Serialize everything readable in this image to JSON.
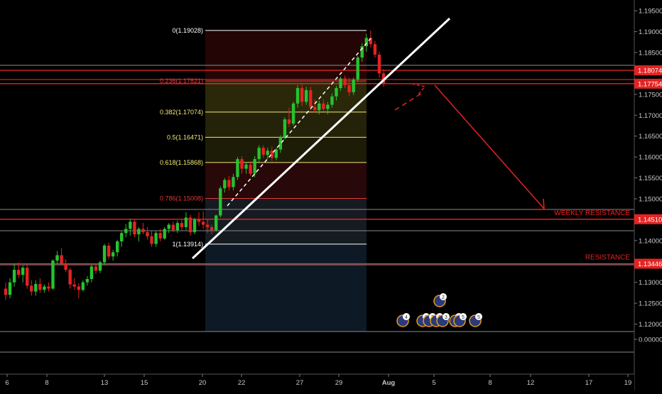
{
  "theme": {
    "background": "#000000",
    "up_color": "#26c22f",
    "down_color": "#e52222",
    "axis_text": "#c8c8c8",
    "fib_label_red": "#e03a3a",
    "fib_label_yellow": "#f2ea77",
    "resistance_red": "#ff2a2a"
  },
  "chart_data": {
    "type": "candlestick",
    "title": "",
    "y_axis": {
      "range": [
        -0.0063,
        1.1992
      ],
      "ticks": [
        "1.19500",
        "1.19000",
        "1.18500",
        "1.18000",
        "1.17500",
        "1.17000",
        "1.16500",
        "1.16000",
        "1.15500",
        "1.15000",
        "1.14500",
        "1.14000",
        "1.13500",
        "1.13000",
        "1.12500",
        "1.12000",
        "0.00000"
      ],
      "price_labels": [
        {
          "text": "1.18074",
          "value": 1.18074,
          "color": "#e52222"
        },
        {
          "text": "1.17754",
          "value": 1.17754,
          "color": "#e52222"
        },
        {
          "text": "1.14510",
          "value": 1.1451,
          "color": "#e52222"
        },
        {
          "text": "1.13446",
          "value": 1.13446,
          "color": "#e52222"
        }
      ]
    },
    "x_axis": {
      "ticks": [
        "6",
        "8",
        "13",
        "15",
        "20",
        "22",
        "27",
        "29",
        "Aug",
        "5",
        "8",
        "12",
        "17",
        "19"
      ]
    },
    "fibonacci": [
      {
        "label": "0(1.19028)",
        "level": "0",
        "value": 1.19028,
        "color": "#ffffff"
      },
      {
        "label": "0.236(1.17821)",
        "level": "0.236",
        "value": 1.17821,
        "color": "#e03a3a"
      },
      {
        "label": "0.382(1.17074)",
        "level": "0.382",
        "value": 1.17074,
        "color": "#f2ea77"
      },
      {
        "label": "0.5(1.16471)",
        "level": "0.5",
        "value": 1.16471,
        "color": "#f2ea77"
      },
      {
        "label": "0.618(1.15868)",
        "level": "0.618",
        "value": 1.15868,
        "color": "#f2ea77"
      },
      {
        "label": "0.786(1.15008)",
        "level": "0.786",
        "value": 1.15008,
        "color": "#e03a3a"
      },
      {
        "label": "1(1.13914)",
        "level": "1",
        "value": 1.13914,
        "color": "#ffffff"
      }
    ],
    "annotations": [
      {
        "text": "WEEKLY RESISTANCE",
        "value": 1.1451
      },
      {
        "text": "RESISTANCE",
        "value": 1.13446
      }
    ],
    "event_badges": [
      "4",
      "2",
      "2",
      "3",
      "3",
      "2",
      "3",
      "5",
      "5"
    ],
    "candles": [
      {
        "o": 1.1285,
        "h": 1.13,
        "l": 1.1258,
        "c": 1.127
      },
      {
        "o": 1.127,
        "h": 1.131,
        "l": 1.1262,
        "c": 1.13
      },
      {
        "o": 1.13,
        "h": 1.1345,
        "l": 1.129,
        "c": 1.133
      },
      {
        "o": 1.133,
        "h": 1.1348,
        "l": 1.131,
        "c": 1.1318
      },
      {
        "o": 1.1318,
        "h": 1.134,
        "l": 1.13,
        "c": 1.1335
      },
      {
        "o": 1.1335,
        "h": 1.1342,
        "l": 1.1285,
        "c": 1.1292
      },
      {
        "o": 1.1292,
        "h": 1.1305,
        "l": 1.1268,
        "c": 1.1278
      },
      {
        "o": 1.1278,
        "h": 1.1305,
        "l": 1.1268,
        "c": 1.1296
      },
      {
        "o": 1.1296,
        "h": 1.131,
        "l": 1.1275,
        "c": 1.1282
      },
      {
        "o": 1.1282,
        "h": 1.1295,
        "l": 1.1275,
        "c": 1.129
      },
      {
        "o": 1.129,
        "h": 1.13,
        "l": 1.1278,
        "c": 1.1285
      },
      {
        "o": 1.1285,
        "h": 1.1355,
        "l": 1.1282,
        "c": 1.1352
      },
      {
        "o": 1.1352,
        "h": 1.1375,
        "l": 1.1345,
        "c": 1.1365
      },
      {
        "o": 1.1365,
        "h": 1.1382,
        "l": 1.134,
        "c": 1.1345
      },
      {
        "o": 1.1345,
        "h": 1.1355,
        "l": 1.1325,
        "c": 1.133
      },
      {
        "o": 1.133,
        "h": 1.1335,
        "l": 1.1285,
        "c": 1.1295
      },
      {
        "o": 1.1295,
        "h": 1.131,
        "l": 1.1282,
        "c": 1.129
      },
      {
        "o": 1.129,
        "h": 1.1298,
        "l": 1.1262,
        "c": 1.1282
      },
      {
        "o": 1.1282,
        "h": 1.1305,
        "l": 1.1278,
        "c": 1.13
      },
      {
        "o": 1.13,
        "h": 1.1315,
        "l": 1.1292,
        "c": 1.1308
      },
      {
        "o": 1.1308,
        "h": 1.1342,
        "l": 1.13,
        "c": 1.1338
      },
      {
        "o": 1.1338,
        "h": 1.1345,
        "l": 1.132,
        "c": 1.1328
      },
      {
        "o": 1.1328,
        "h": 1.1352,
        "l": 1.1322,
        "c": 1.1348
      },
      {
        "o": 1.1348,
        "h": 1.1392,
        "l": 1.1342,
        "c": 1.1388
      },
      {
        "o": 1.1388,
        "h": 1.1395,
        "l": 1.1355,
        "c": 1.1362
      },
      {
        "o": 1.1362,
        "h": 1.1378,
        "l": 1.1352,
        "c": 1.1372
      },
      {
        "o": 1.1372,
        "h": 1.1402,
        "l": 1.1362,
        "c": 1.1398
      },
      {
        "o": 1.1398,
        "h": 1.1422,
        "l": 1.1385,
        "c": 1.1418
      },
      {
        "o": 1.1418,
        "h": 1.144,
        "l": 1.1408,
        "c": 1.1428
      },
      {
        "o": 1.1428,
        "h": 1.1452,
        "l": 1.1412,
        "c": 1.1445
      },
      {
        "o": 1.1445,
        "h": 1.145,
        "l": 1.1408,
        "c": 1.1415
      },
      {
        "o": 1.1415,
        "h": 1.1432,
        "l": 1.1398,
        "c": 1.1428
      },
      {
        "o": 1.1428,
        "h": 1.1442,
        "l": 1.1415,
        "c": 1.142
      },
      {
        "o": 1.142,
        "h": 1.1432,
        "l": 1.1402,
        "c": 1.141
      },
      {
        "o": 1.141,
        "h": 1.1425,
        "l": 1.1385,
        "c": 1.1392
      },
      {
        "o": 1.1392,
        "h": 1.1422,
        "l": 1.1385,
        "c": 1.1418
      },
      {
        "o": 1.1418,
        "h": 1.1428,
        "l": 1.1398,
        "c": 1.1405
      },
      {
        "o": 1.1405,
        "h": 1.1432,
        "l": 1.1402,
        "c": 1.1428
      },
      {
        "o": 1.1428,
        "h": 1.1442,
        "l": 1.1418,
        "c": 1.1438
      },
      {
        "o": 1.1438,
        "h": 1.1445,
        "l": 1.142,
        "c": 1.1425
      },
      {
        "o": 1.1425,
        "h": 1.1448,
        "l": 1.1418,
        "c": 1.1442
      },
      {
        "o": 1.1442,
        "h": 1.1452,
        "l": 1.1425,
        "c": 1.1432
      },
      {
        "o": 1.1432,
        "h": 1.1468,
        "l": 1.1425,
        "c": 1.1455
      },
      {
        "o": 1.1455,
        "h": 1.1462,
        "l": 1.1412,
        "c": 1.142
      },
      {
        "o": 1.142,
        "h": 1.1455,
        "l": 1.1415,
        "c": 1.145
      },
      {
        "o": 1.145,
        "h": 1.1468,
        "l": 1.1435,
        "c": 1.1445
      },
      {
        "o": 1.1445,
        "h": 1.147,
        "l": 1.1428,
        "c": 1.1438
      },
      {
        "o": 1.1438,
        "h": 1.1452,
        "l": 1.1418,
        "c": 1.1432
      },
      {
        "o": 1.1432,
        "h": 1.1438,
        "l": 1.1415,
        "c": 1.1425
      },
      {
        "o": 1.1425,
        "h": 1.1462,
        "l": 1.1422,
        "c": 1.146
      },
      {
        "o": 1.146,
        "h": 1.153,
        "l": 1.1455,
        "c": 1.1525
      },
      {
        "o": 1.1525,
        "h": 1.155,
        "l": 1.1515,
        "c": 1.1545
      },
      {
        "o": 1.1545,
        "h": 1.1555,
        "l": 1.152,
        "c": 1.1528
      },
      {
        "o": 1.1528,
        "h": 1.156,
        "l": 1.152,
        "c": 1.1552
      },
      {
        "o": 1.1552,
        "h": 1.16,
        "l": 1.1545,
        "c": 1.1595
      },
      {
        "o": 1.1595,
        "h": 1.1602,
        "l": 1.156,
        "c": 1.1572
      },
      {
        "o": 1.1572,
        "h": 1.1588,
        "l": 1.156,
        "c": 1.1582
      },
      {
        "o": 1.1582,
        "h": 1.159,
        "l": 1.1555,
        "c": 1.156
      },
      {
        "o": 1.156,
        "h": 1.1602,
        "l": 1.1552,
        "c": 1.1595
      },
      {
        "o": 1.1595,
        "h": 1.1628,
        "l": 1.1588,
        "c": 1.1622
      },
      {
        "o": 1.1622,
        "h": 1.1628,
        "l": 1.1598,
        "c": 1.1605
      },
      {
        "o": 1.1605,
        "h": 1.1622,
        "l": 1.1595,
        "c": 1.1615
      },
      {
        "o": 1.1615,
        "h": 1.1625,
        "l": 1.159,
        "c": 1.1598
      },
      {
        "o": 1.1598,
        "h": 1.1622,
        "l": 1.1592,
        "c": 1.1618
      },
      {
        "o": 1.1618,
        "h": 1.1652,
        "l": 1.161,
        "c": 1.1648
      },
      {
        "o": 1.1648,
        "h": 1.1695,
        "l": 1.1642,
        "c": 1.169
      },
      {
        "o": 1.169,
        "h": 1.1718,
        "l": 1.1672,
        "c": 1.168
      },
      {
        "o": 1.168,
        "h": 1.1732,
        "l": 1.1675,
        "c": 1.1728
      },
      {
        "o": 1.1728,
        "h": 1.1772,
        "l": 1.1718,
        "c": 1.1765
      },
      {
        "o": 1.1765,
        "h": 1.1775,
        "l": 1.1722,
        "c": 1.1732
      },
      {
        "o": 1.1732,
        "h": 1.1768,
        "l": 1.1725,
        "c": 1.176
      },
      {
        "o": 1.176,
        "h": 1.1768,
        "l": 1.1712,
        "c": 1.172
      },
      {
        "o": 1.172,
        "h": 1.1738,
        "l": 1.1705,
        "c": 1.1712
      },
      {
        "o": 1.1712,
        "h": 1.1735,
        "l": 1.1702,
        "c": 1.1728
      },
      {
        "o": 1.1728,
        "h": 1.1738,
        "l": 1.1708,
        "c": 1.1715
      },
      {
        "o": 1.1715,
        "h": 1.1732,
        "l": 1.1702,
        "c": 1.1725
      },
      {
        "o": 1.1725,
        "h": 1.1752,
        "l": 1.1718,
        "c": 1.1745
      },
      {
        "o": 1.1745,
        "h": 1.177,
        "l": 1.1735,
        "c": 1.1765
      },
      {
        "o": 1.1765,
        "h": 1.1792,
        "l": 1.1758,
        "c": 1.1788
      },
      {
        "o": 1.1788,
        "h": 1.1795,
        "l": 1.1765,
        "c": 1.1772
      },
      {
        "o": 1.1772,
        "h": 1.179,
        "l": 1.1745,
        "c": 1.1755
      },
      {
        "o": 1.1755,
        "h": 1.179,
        "l": 1.1748,
        "c": 1.1785
      },
      {
        "o": 1.1785,
        "h": 1.1842,
        "l": 1.178,
        "c": 1.1838
      },
      {
        "o": 1.1838,
        "h": 1.1872,
        "l": 1.1828,
        "c": 1.1865
      },
      {
        "o": 1.1865,
        "h": 1.1895,
        "l": 1.1852,
        "c": 1.1885
      },
      {
        "o": 1.1885,
        "h": 1.1903,
        "l": 1.1862,
        "c": 1.187
      },
      {
        "o": 1.187,
        "h": 1.1878,
        "l": 1.1838,
        "c": 1.1845
      },
      {
        "o": 1.1845,
        "h": 1.1852,
        "l": 1.179,
        "c": 1.18
      },
      {
        "o": 1.18,
        "h": 1.181,
        "l": 1.1768,
        "c": 1.1775
      }
    ]
  }
}
